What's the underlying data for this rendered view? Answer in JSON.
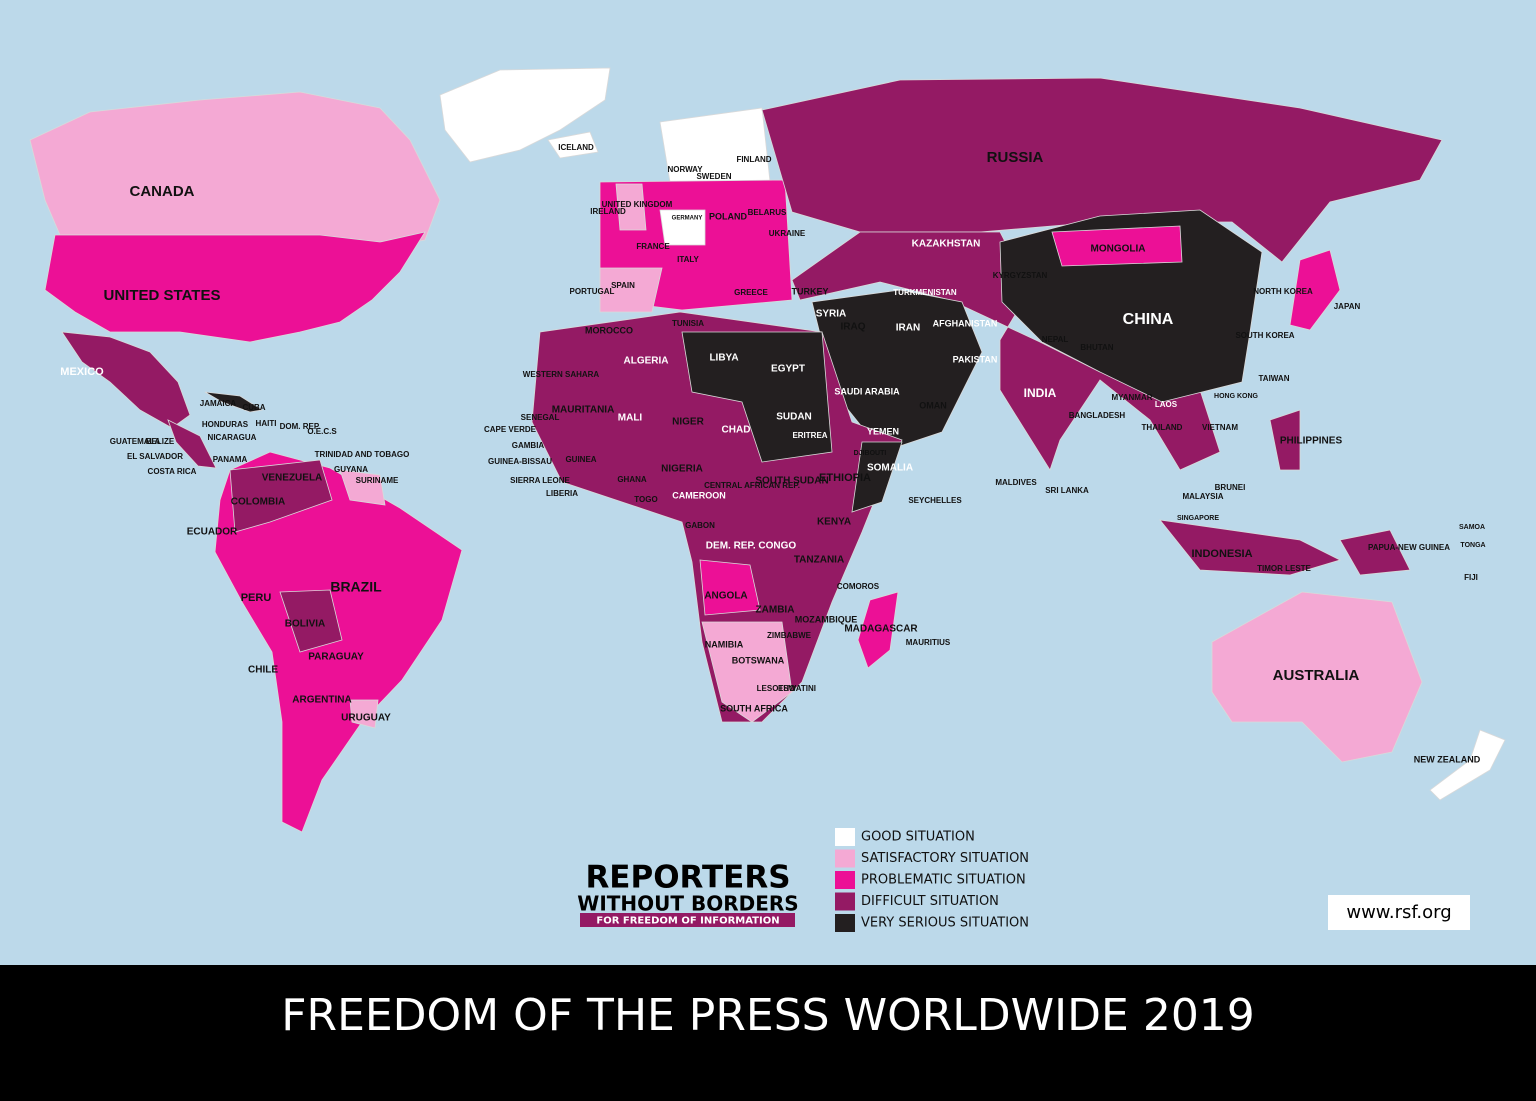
{
  "title": "FREEDOM OF THE PRESS WORLDWIDE 2019",
  "logo": {
    "line1": "REPORTERS",
    "line2": "WITHOUT BORDERS",
    "tagline": "FOR FREEDOM OF INFORMATION"
  },
  "url": "www.rsf.org",
  "legend": [
    {
      "label": "GOOD SITUATION",
      "color": "#ffffff"
    },
    {
      "label": "SATISFACTORY SITUATION",
      "color": "#f4a9d4"
    },
    {
      "label": "PROBLEMATIC SITUATION",
      "color": "#ec1096"
    },
    {
      "label": "DIFFICULT SITUATION",
      "color": "#941a64"
    },
    {
      "label": "VERY SERIOUS SITUATION",
      "color": "#231f20"
    }
  ],
  "map": {
    "labels": [
      "CANADA",
      "UNITED STATES",
      "MEXICO",
      "CUBA",
      "JAMAICA",
      "HAITI",
      "DOM. REP.",
      "BELIZE",
      "HONDURAS",
      "GUATEMALA",
      "NICARAGUA",
      "EL SALVADOR",
      "COSTA RICA",
      "PANAMA",
      "VENEZUELA",
      "COLOMBIA",
      "ECUADOR",
      "PERU",
      "BRAZIL",
      "BOLIVIA",
      "PARAGUAY",
      "CHILE",
      "ARGENTINA",
      "URUGUAY",
      "GUYANA",
      "SURINAME",
      "TRINIDAD AND TOBAGO",
      "O.E.C.S",
      "ICELAND",
      "NORWAY",
      "SWEDEN",
      "FINLAND",
      "UNITED KINGDOM",
      "IRELAND",
      "FRANCE",
      "SPAIN",
      "PORTUGAL",
      "GERMANY",
      "POLAND",
      "BELARUS",
      "UKRAINE",
      "ITALY",
      "GREECE",
      "TURKEY",
      "RUSSIA",
      "KAZAKHSTAN",
      "MONGOLIA",
      "CHINA",
      "NORTH KOREA",
      "SOUTH KOREA",
      "JAPAN",
      "TAIWAN",
      "HONG KONG",
      "TURKMENISTAN",
      "KYRGYZSTAN",
      "AFGHANISTAN",
      "PAKISTAN",
      "IRAN",
      "IRAQ",
      "SYRIA",
      "SAUDI ARABIA",
      "YEMEN",
      "OMAN",
      "INDIA",
      "NEPAL",
      "BHUTAN",
      "BANGLADESH",
      "MYANMAR",
      "THAILAND",
      "LAOS",
      "VIETNAM",
      "PHILIPPINES",
      "MALAYSIA",
      "BRUNEI",
      "SINGAPORE",
      "INDONESIA",
      "TIMOR LESTE",
      "PAPUA-NEW GUINEA",
      "AUSTRALIA",
      "NEW ZEALAND",
      "SRI LANKA",
      "MALDIVES",
      "SEYCHELLES",
      "MOROCCO",
      "ALGERIA",
      "TUNISIA",
      "LIBYA",
      "EGYPT",
      "SUDAN",
      "MALI",
      "NIGER",
      "CHAD",
      "MAURITANIA",
      "WESTERN SAHARA",
      "SENEGAL",
      "NIGERIA",
      "ETHIOPIA",
      "SOMALIA",
      "SOUTH SUDAN",
      "ERITREA",
      "DJIBOUTI",
      "CAMEROON",
      "CENTRAL AFRICAN REP.",
      "KENYA",
      "DEM. REP. CONGO",
      "TANZANIA",
      "ANGOLA",
      "ZAMBIA",
      "MOZAMBIQUE",
      "ZIMBABWE",
      "NAMIBIA",
      "BOTSWANA",
      "SOUTH AFRICA",
      "MADAGASCAR",
      "MAURITIUS",
      "COMOROS",
      "GHANA",
      "TOGO",
      "LIBERIA",
      "SIERRA LEONE",
      "GUINEA",
      "CAPE VERDE",
      "GAMBIA",
      "GUINEA-BISSAU",
      "GABON",
      "LESOTHO",
      "ESWATINI",
      "FIJI",
      "SAMOA",
      "TONGA"
    ]
  }
}
